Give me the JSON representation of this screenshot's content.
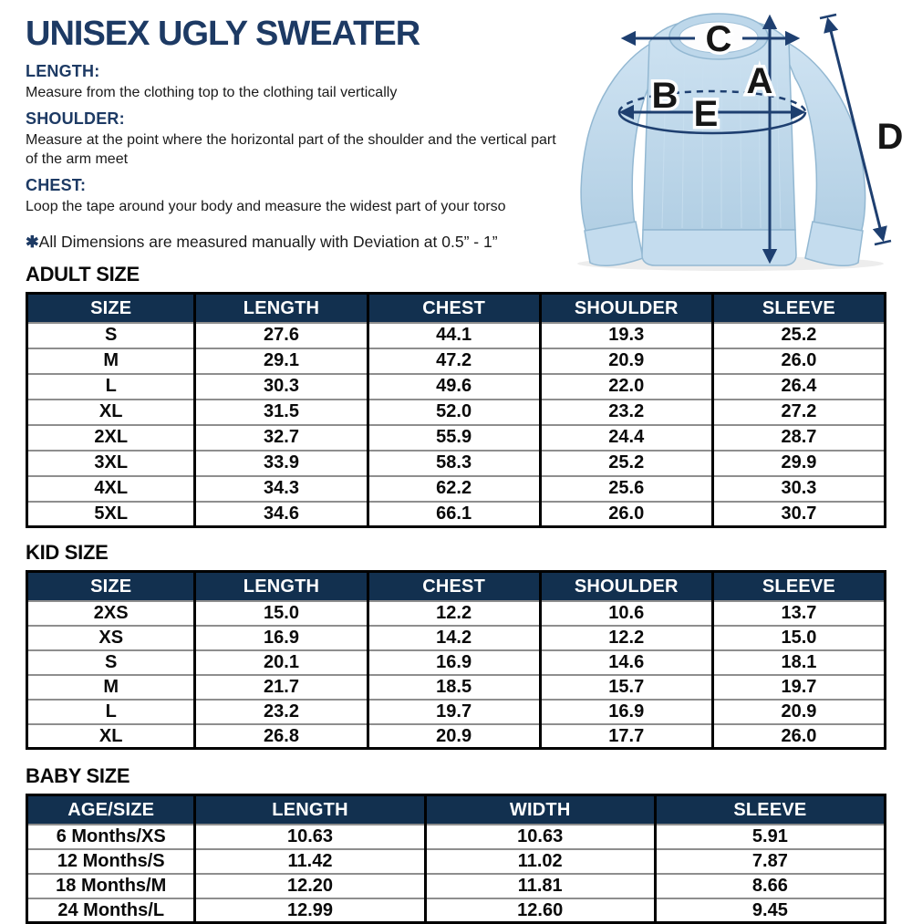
{
  "page": {
    "title": "UNISEX UGLY SWEATER"
  },
  "instructions": {
    "sections": [
      {
        "label": "LENGTH:",
        "text": "Measure from the clothing top to the clothing tail vertically"
      },
      {
        "label": "SHOULDER:",
        "text": "Measure at the point where the horizontal part of the shoulder and the vertical part of the arm meet"
      },
      {
        "label": "CHEST:",
        "text": "Loop the tape around your body and measure the widest part of your torso"
      }
    ],
    "note_symbol": "✱",
    "note_text": "All Dimensions are measured manually with Deviation at 0.5” - 1”"
  },
  "diagram": {
    "labels": {
      "length": "A",
      "chest_back": "B",
      "shoulder": "C",
      "sleeve": "D",
      "chest_front": "E"
    },
    "colors": {
      "sweater": "#bdd7ea",
      "sweater_trim": "#c4dcee",
      "outline": "#93b8d2",
      "arrow": "#1e3f70",
      "label": "#161616"
    }
  },
  "colors": {
    "heading_navy": "#1d3a64",
    "table_header_bg": "#12304f",
    "table_header_text": "#ffffff",
    "body_text": "#1a1a1a"
  },
  "tables": [
    {
      "section_title": "ADULT SIZE",
      "headers": [
        "SIZE",
        "LENGTH",
        "CHEST",
        "SHOULDER",
        "SLEEVE"
      ],
      "rows": [
        [
          "S",
          "27.6",
          "44.1",
          "19.3",
          "25.2"
        ],
        [
          "M",
          "29.1",
          "47.2",
          "20.9",
          "26.0"
        ],
        [
          "L",
          "30.3",
          "49.6",
          "22.0",
          "26.4"
        ],
        [
          "XL",
          "31.5",
          "52.0",
          "23.2",
          "27.2"
        ],
        [
          "2XL",
          "32.7",
          "55.9",
          "24.4",
          "28.7"
        ],
        [
          "3XL",
          "33.9",
          "58.3",
          "25.2",
          "29.9"
        ],
        [
          "4XL",
          "34.3",
          "62.2",
          "25.6",
          "30.3"
        ],
        [
          "5XL",
          "34.6",
          "66.1",
          "26.0",
          "30.7"
        ]
      ]
    },
    {
      "section_title": "KID SIZE",
      "headers": [
        "SIZE",
        "LENGTH",
        "CHEST",
        "SHOULDER",
        "SLEEVE"
      ],
      "rows": [
        [
          "2XS",
          "15.0",
          "12.2",
          "10.6",
          "13.7"
        ],
        [
          "XS",
          "16.9",
          "14.2",
          "12.2",
          "15.0"
        ],
        [
          "S",
          "20.1",
          "16.9",
          "14.6",
          "18.1"
        ],
        [
          "M",
          "21.7",
          "18.5",
          "15.7",
          "19.7"
        ],
        [
          "L",
          "23.2",
          "19.7",
          "16.9",
          "20.9"
        ],
        [
          "XL",
          "26.8",
          "20.9",
          "17.7",
          "26.0"
        ]
      ]
    },
    {
      "section_title": "BABY SIZE",
      "headers": [
        "AGE/SIZE",
        "LENGTH",
        "WIDTH",
        "SLEEVE"
      ],
      "rows": [
        [
          "6 Months/XS",
          "10.63",
          "10.63",
          "5.91"
        ],
        [
          "12 Months/S",
          "11.42",
          "11.02",
          "7.87"
        ],
        [
          "18 Months/M",
          "12.20",
          "11.81",
          "8.66"
        ],
        [
          "24 Months/L",
          "12.99",
          "12.60",
          "9.45"
        ]
      ]
    }
  ]
}
